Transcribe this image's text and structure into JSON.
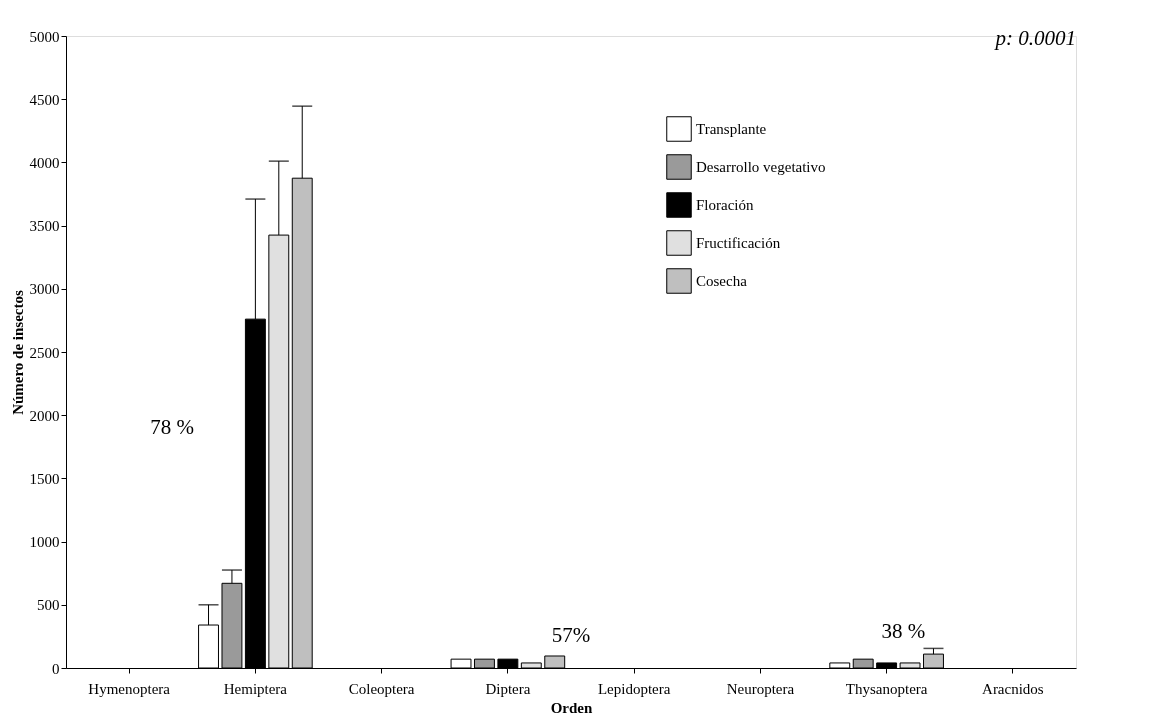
{
  "chart_data": {
    "type": "bar",
    "xlabel": "Orden",
    "ylabel": "Número de insectos",
    "categories": [
      "Hymenoptera",
      "Hemiptera",
      "Coleoptera",
      "Diptera",
      "Lepidoptera",
      "Neuroptera",
      "Thysanoptera",
      "Aracnidos"
    ],
    "series": [
      {
        "name": "Transplante",
        "color": "#ffffff",
        "values": [
          null,
          340,
          null,
          70,
          null,
          null,
          40,
          null
        ],
        "errors": [
          null,
          [
            340,
            500
          ],
          null,
          null,
          null,
          null,
          null,
          null
        ]
      },
      {
        "name": "Desarrollo vegetativo",
        "color": "#9a9a9a",
        "values": [
          null,
          670,
          null,
          70,
          null,
          null,
          70,
          null
        ],
        "errors": [
          null,
          [
            670,
            775
          ],
          null,
          null,
          null,
          null,
          null,
          null
        ]
      },
      {
        "name": "Floración",
        "color": "#000000",
        "values": [
          null,
          2760,
          null,
          70,
          null,
          null,
          40,
          null
        ],
        "errors": [
          null,
          [
            2760,
            3710
          ],
          null,
          null,
          null,
          null,
          null,
          null
        ]
      },
      {
        "name": "Fructificación",
        "color": "#e0e0e0",
        "values": [
          null,
          3425,
          null,
          40,
          null,
          null,
          40,
          null
        ],
        "errors": [
          null,
          [
            3425,
            4010
          ],
          null,
          null,
          null,
          null,
          null,
          null
        ]
      },
      {
        "name": "Cosecha",
        "color": "#bfbfbf",
        "values": [
          null,
          3875,
          null,
          95,
          null,
          null,
          110,
          null
        ],
        "errors": [
          null,
          [
            3875,
            4445
          ],
          null,
          null,
          null,
          null,
          [
            110,
            155
          ],
          null
        ]
      }
    ],
    "ylim": [
      0,
      5000
    ],
    "yticks": [
      0,
      500,
      1000,
      1500,
      2000,
      2500,
      3000,
      3500,
      4000,
      4500,
      5000
    ],
    "grid": false,
    "legend": "top right",
    "annotations": [
      "78 %",
      "57%",
      "38 %",
      "p: 0.0001"
    ]
  }
}
